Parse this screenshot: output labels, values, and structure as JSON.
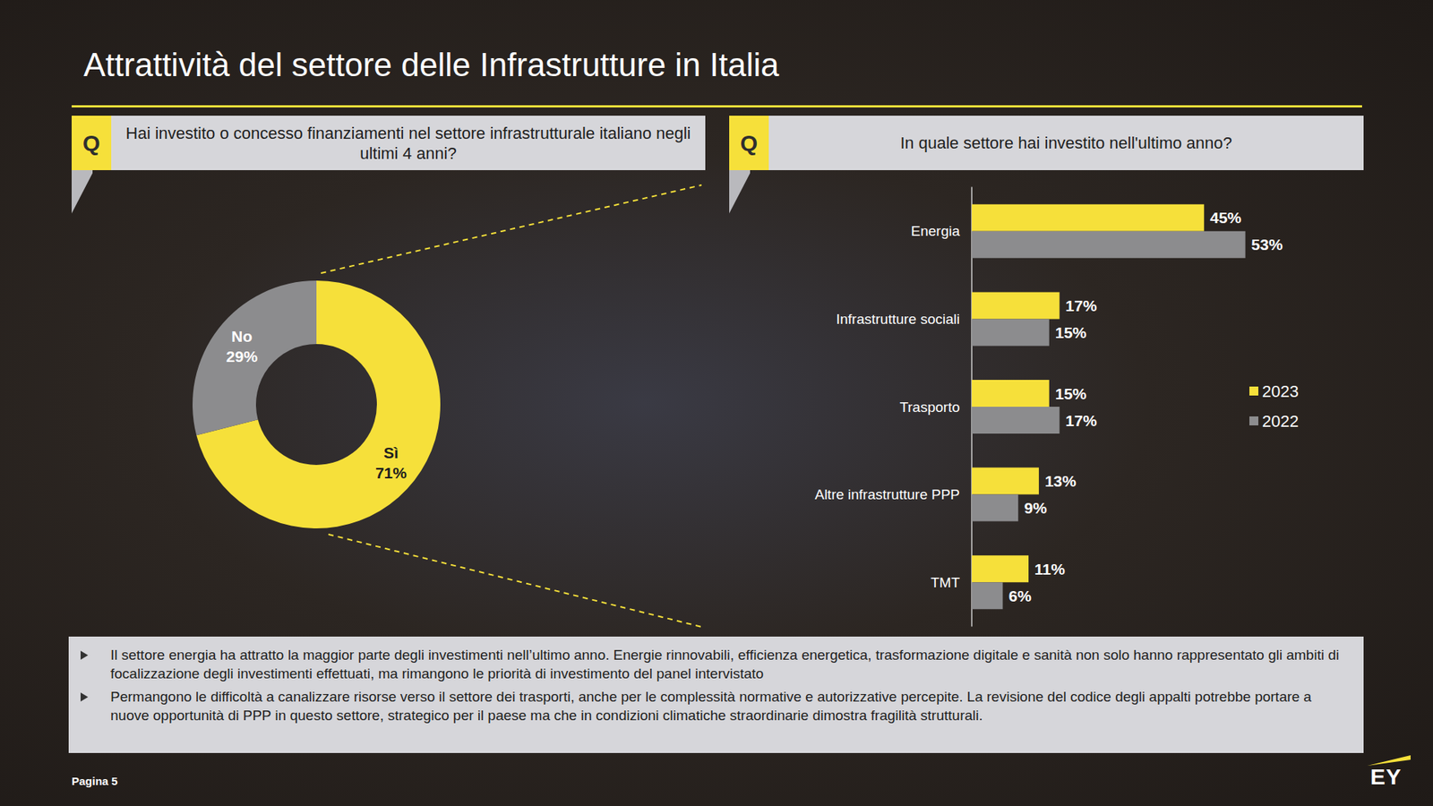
{
  "title": "Attrattività del settore delle Infrastrutture in Italia",
  "chart_data": [
    {
      "type": "pie",
      "title": "Hai investito o concesso finanziamenti nel settore infrastrutturale italiano negli ultimi 4 anni?",
      "categories": [
        "Sì",
        "No"
      ],
      "values": [
        71,
        29
      ],
      "value_labels": [
        "71%",
        "29%"
      ],
      "colors": [
        "#f6e03a",
        "#8c8c8e"
      ],
      "data_labels": true
    },
    {
      "type": "bar",
      "title": "In quale settore hai investito nell'ultimo anno?",
      "orientation": "horizontal",
      "categories": [
        "Energia",
        "Infrastrutture sociali",
        "Trasporto",
        "Altre infrastrutture PPP",
        "TMT"
      ],
      "series": [
        {
          "name": "2023",
          "color": "#f6e03a",
          "values": [
            45,
            17,
            15,
            13,
            11
          ],
          "value_labels": [
            "45%",
            "17%",
            "15%",
            "13%",
            "11%"
          ]
        },
        {
          "name": "2022",
          "color": "#8c8c8e",
          "values": [
            53,
            15,
            17,
            9,
            6
          ],
          "value_labels": [
            "53%",
            "15%",
            "17%",
            "9%",
            "6%"
          ]
        }
      ],
      "xlim": [
        0,
        60
      ],
      "data_labels": true,
      "tick_labels": "y",
      "grid": false,
      "legend": "right"
    }
  ],
  "notes": [
    "Il settore energia ha attratto la maggior parte degli investimenti nell’ultimo anno. Energie rinnovabili, efficienza energetica, trasformazione digitale e sanità non solo hanno rappresentato gli ambiti di focalizzazione degli investimenti effettuati, ma rimangono le priorità di investimento del panel intervistato",
    "Permangono le difficoltà a canalizzare risorse verso il settore dei trasporti, anche per le complessità normative e autorizzative percepite. La revisione del codice degli appalti potrebbe portare a nuove opportunità di PPP in questo settore, strategico per il paese ma che in condizioni climatiche straordinarie dimostra fragilità strutturali."
  ],
  "page": "Pagina 5",
  "logo": "EY",
  "question_mark": "Q"
}
